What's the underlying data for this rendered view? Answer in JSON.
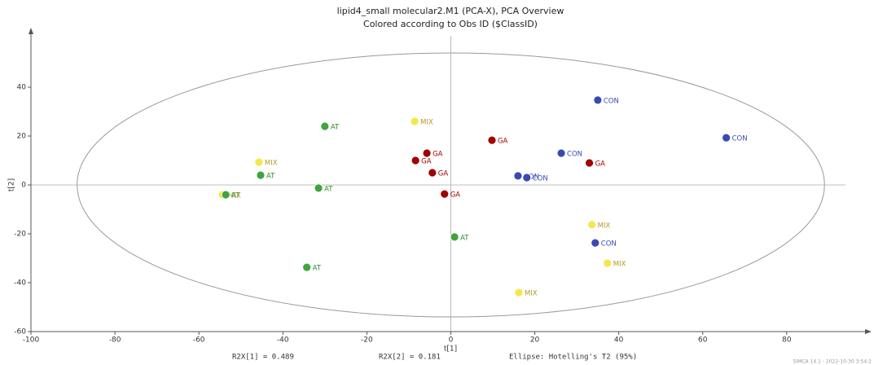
{
  "chart_data": {
    "type": "scatter",
    "title": "lipid4_small molecular2.M1 (PCA-X), PCA Overview",
    "subtitle": "Colored according to Obs ID ($ClassID)",
    "x_label": "t[1]",
    "y_label": "t[2]",
    "footer": [
      "R2X[1] = 0.489",
      "R2X[2] = 0.181",
      "Ellipse: Hotelling's T2 (95%)"
    ],
    "watermark": "SIMCA 14.1 - 2022-10-30 3:54:2",
    "xlim": [
      -100,
      94
    ],
    "ylim": [
      -60,
      61
    ],
    "xticks": [
      -100,
      -80,
      -60,
      -40,
      -20,
      0,
      20,
      40,
      60,
      80
    ],
    "yticks": [
      -60,
      -40,
      -20,
      0,
      20,
      40
    ],
    "zero_lines": true,
    "ellipse": {
      "cx": 0,
      "cy": 0,
      "rx": 89,
      "ry": 54
    },
    "series": [
      {
        "name": "CON",
        "color": "#3a49b4",
        "label_color": "#3a49b4",
        "x": [
          35.0,
          65.6,
          26.3,
          16.0,
          18.1,
          34.4
        ],
        "y": [
          34.7,
          19.3,
          13,
          3.7,
          3,
          -23.7
        ]
      },
      {
        "name": "GA",
        "color": "#a00000",
        "label_color": "#a00000",
        "x": [
          9.8,
          -5.7,
          -8.4,
          -4.4,
          -1.5,
          33.0
        ],
        "y": [
          18.3,
          13,
          10,
          5,
          -3.7,
          9
        ]
      },
      {
        "name": "MIX",
        "color": "#f6e64c",
        "label_color": "#b39a24",
        "x": [
          -8.6,
          -45.7,
          -54.4,
          33.6,
          37.3,
          16.2
        ],
        "y": [
          26,
          9.3,
          -4,
          -16.3,
          -32,
          -44
        ]
      },
      {
        "name": "AT",
        "color": "#3fa43f",
        "label_color": "#2f8a2f",
        "x": [
          -30,
          -45.3,
          -53.6,
          -31.5,
          0.9,
          -34.3
        ],
        "y": [
          24,
          4,
          -4,
          -1.3,
          -21.3,
          -33.7
        ]
      }
    ]
  }
}
